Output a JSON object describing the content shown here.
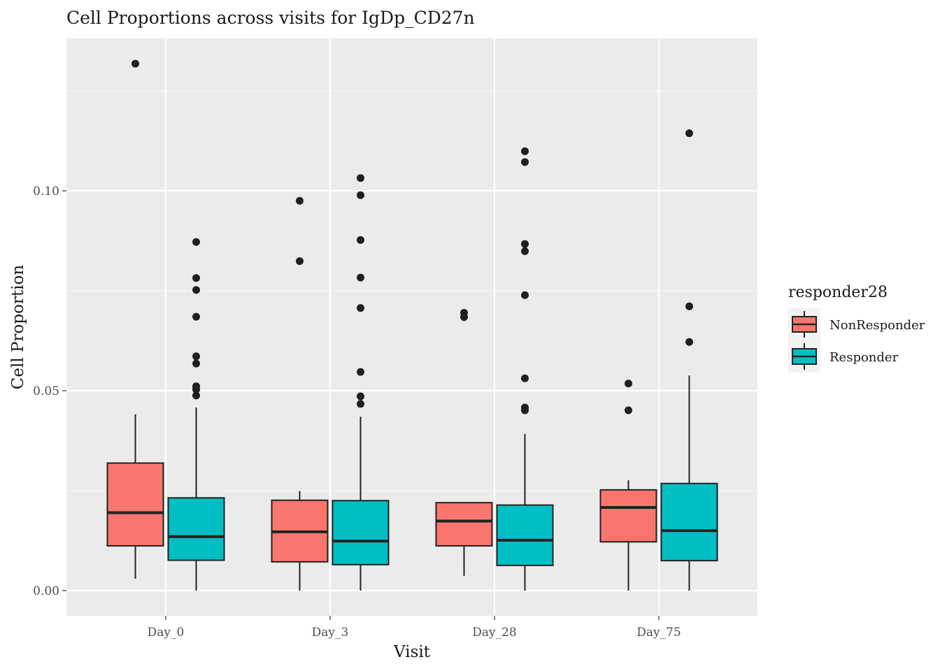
{
  "chart_data": {
    "type": "boxplot",
    "title": "Cell Proportions across visits for IgDp_CD27n",
    "xlabel": "Visit",
    "ylabel": "Cell Proportion",
    "categories": [
      "Day_0",
      "Day_3",
      "Day_28",
      "Day_75"
    ],
    "ylim": [
      -0.0065,
      0.138
    ],
    "yticks": [
      0.0,
      0.05,
      0.1
    ],
    "ytick_labels": [
      "0.00",
      "0.05",
      "0.10"
    ],
    "grid": true,
    "legend": {
      "title": "responder28",
      "placement": "right"
    },
    "series": [
      {
        "name": "NonResponder",
        "color": "#F8766D",
        "boxes": [
          {
            "category": "Day_0",
            "whisker_low": 0.003,
            "q1": 0.0112,
            "median": 0.0195,
            "q3": 0.0319,
            "whisker_high": 0.0441,
            "outliers": [
              0.1318
            ]
          },
          {
            "category": "Day_3",
            "whisker_low": 0.0,
            "q1": 0.0072,
            "median": 0.0147,
            "q3": 0.0226,
            "whisker_high": 0.0249,
            "outliers": [
              0.0975,
              0.0824
            ]
          },
          {
            "category": "Day_28",
            "whisker_low": 0.0037,
            "q1": 0.0112,
            "median": 0.0174,
            "q3": 0.022,
            "whisker_high": 0.022,
            "outliers": [
              0.0695,
              0.0684
            ]
          },
          {
            "category": "Day_75",
            "whisker_low": 0.0,
            "q1": 0.0122,
            "median": 0.0208,
            "q3": 0.0252,
            "whisker_high": 0.0276,
            "outliers": [
              0.0518,
              0.0451
            ]
          }
        ]
      },
      {
        "name": "Responder",
        "color": "#00BFC4",
        "boxes": [
          {
            "category": "Day_0",
            "whisker_low": 0.0,
            "q1": 0.0076,
            "median": 0.0135,
            "q3": 0.0232,
            "whisker_high": 0.0458,
            "outliers": [
              0.0872,
              0.0782,
              0.0752,
              0.0685,
              0.0586,
              0.0568,
              0.0511,
              0.0503,
              0.0488
            ]
          },
          {
            "category": "Day_3",
            "whisker_low": 0.0,
            "q1": 0.0065,
            "median": 0.0124,
            "q3": 0.0225,
            "whisker_high": 0.0435,
            "outliers": [
              0.1032,
              0.0989,
              0.0877,
              0.0783,
              0.0707,
              0.0547,
              0.0486,
              0.0467
            ]
          },
          {
            "category": "Day_28",
            "whisker_low": 0.0,
            "q1": 0.0063,
            "median": 0.0126,
            "q3": 0.0214,
            "whisker_high": 0.0392,
            "outliers": [
              0.1099,
              0.1072,
              0.0867,
              0.0849,
              0.0739,
              0.0531,
              0.0458,
              0.0451
            ]
          },
          {
            "category": "Day_75",
            "whisker_low": 0.0,
            "q1": 0.0075,
            "median": 0.015,
            "q3": 0.0268,
            "whisker_high": 0.0538,
            "outliers": [
              0.1144,
              0.0711,
              0.0622
            ]
          }
        ]
      }
    ]
  }
}
